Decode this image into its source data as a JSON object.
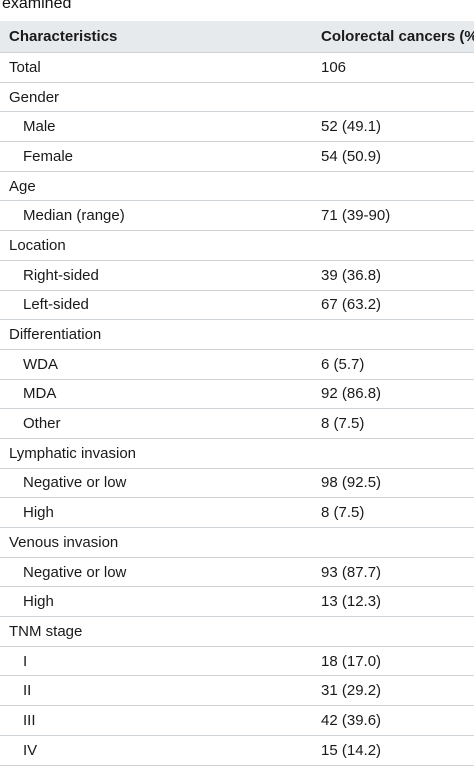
{
  "caption": "examined",
  "table": {
    "columns": [
      "Characteristics",
      "Colorectal cancers (%)"
    ],
    "rows": [
      {
        "label": "Total",
        "value": "106",
        "indent": false
      },
      {
        "label": "Gender",
        "value": "",
        "indent": false
      },
      {
        "label": "Male",
        "value": "52 (49.1)",
        "indent": true
      },
      {
        "label": "Female",
        "value": "54 (50.9)",
        "indent": true
      },
      {
        "label": "Age",
        "value": "",
        "indent": false
      },
      {
        "label": "Median (range)",
        "value": "71 (39-90)",
        "indent": true
      },
      {
        "label": "Location",
        "value": "",
        "indent": false
      },
      {
        "label": "Right-sided",
        "value": "39 (36.8)",
        "indent": true
      },
      {
        "label": "Left-sided",
        "value": "67 (63.2)",
        "indent": true
      },
      {
        "label": "Differentiation",
        "value": "",
        "indent": false
      },
      {
        "label": "WDA",
        "value": "6 (5.7)",
        "indent": true
      },
      {
        "label": "MDA",
        "value": "92 (86.8)",
        "indent": true
      },
      {
        "label": "Other",
        "value": "8 (7.5)",
        "indent": true
      },
      {
        "label": "Lymphatic invasion",
        "value": "",
        "indent": false
      },
      {
        "label": "Negative or low",
        "value": "98 (92.5)",
        "indent": true
      },
      {
        "label": "High",
        "value": "8 (7.5)",
        "indent": true
      },
      {
        "label": "Venous invasion",
        "value": "",
        "indent": false
      },
      {
        "label": "Negative or low",
        "value": "93 (87.7)",
        "indent": true
      },
      {
        "label": "High",
        "value": "13 (12.3)",
        "indent": true
      },
      {
        "label": "TNM stage",
        "value": "",
        "indent": false
      },
      {
        "label": "I",
        "value": "18 (17.0)",
        "indent": true
      },
      {
        "label": "II",
        "value": "31 (29.2)",
        "indent": true
      },
      {
        "label": "III",
        "value": "42 (39.6)",
        "indent": true
      },
      {
        "label": "IV",
        "value": "15 (14.2)",
        "indent": true
      }
    ]
  }
}
